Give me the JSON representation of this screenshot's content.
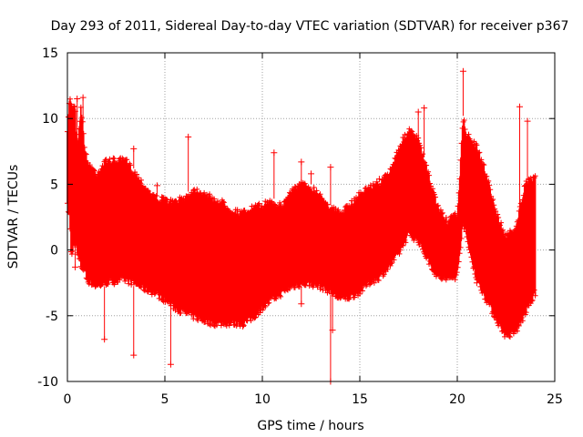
{
  "chart_data": {
    "type": "scatter",
    "title": "Day 293 of 2011, Sidereal Day-to-day VTEC variation (SDTVAR) for receiver p367",
    "xlabel": "GPS time / hours",
    "ylabel": "SDTVAR / TECUs",
    "xlim": [
      0,
      25
    ],
    "ylim": [
      -10,
      15
    ],
    "xticks": [
      0,
      5,
      10,
      15,
      20,
      25
    ],
    "yticks": [
      -10,
      -5,
      0,
      5,
      10,
      15
    ],
    "xtick_labels": [
      "0",
      "5",
      "10",
      "15",
      "20",
      "25"
    ],
    "ytick_labels": [
      "-10",
      "-5",
      "0",
      "5",
      "10",
      "15"
    ],
    "grid": true,
    "marker": "+",
    "color": "#ff0000",
    "series": [
      {
        "name": "SDTVAR",
        "x": [
          0.0,
          0.1,
          0.2,
          0.3,
          0.4,
          0.5,
          0.7,
          0.9,
          1.0,
          1.5,
          2.0,
          2.5,
          3.0,
          3.5,
          4.0,
          4.5,
          5.0,
          5.5,
          6.0,
          6.5,
          7.0,
          7.5,
          8.0,
          8.5,
          9.0,
          9.5,
          10.0,
          10.5,
          11.0,
          11.5,
          12.0,
          12.5,
          13.0,
          13.5,
          14.0,
          14.5,
          15.0,
          15.5,
          16.0,
          16.5,
          17.0,
          17.5,
          18.0,
          18.5,
          19.0,
          19.5,
          20.0,
          20.3,
          20.5,
          21.0,
          21.5,
          22.0,
          22.5,
          23.0,
          23.5,
          24.0
        ],
        "upper": [
          9.0,
          11.8,
          11.5,
          11.0,
          11.5,
          8.0,
          11.2,
          8.0,
          7.0,
          6.0,
          7.0,
          7.0,
          7.0,
          6.0,
          5.0,
          4.2,
          4.0,
          3.8,
          4.2,
          4.8,
          4.6,
          4.0,
          3.8,
          3.2,
          3.0,
          3.4,
          3.6,
          4.0,
          3.5,
          4.8,
          5.2,
          5.0,
          4.4,
          3.4,
          3.0,
          3.6,
          4.5,
          5.0,
          5.3,
          6.0,
          8.0,
          9.3,
          8.6,
          6.0,
          3.5,
          2.3,
          3.0,
          10.2,
          9.0,
          8.0,
          6.0,
          3.0,
          1.2,
          2.0,
          5.2,
          5.8
        ],
        "lower": [
          3.0,
          2.5,
          -1.0,
          0.0,
          0.5,
          -0.5,
          -1.5,
          -1.8,
          -2.5,
          -3.0,
          -2.7,
          -2.6,
          -2.5,
          -2.8,
          -3.2,
          -3.5,
          -4.0,
          -4.6,
          -5.0,
          -5.3,
          -5.6,
          -5.8,
          -5.8,
          -5.8,
          -5.8,
          -5.4,
          -4.6,
          -4.0,
          -3.5,
          -3.0,
          -2.8,
          -2.8,
          -3.0,
          -3.4,
          -4.0,
          -3.8,
          -3.4,
          -2.7,
          -2.3,
          -1.5,
          -0.5,
          1.0,
          0.5,
          -1.0,
          -2.3,
          -2.5,
          -2.2,
          2.0,
          0.5,
          -2.5,
          -4.0,
          -5.5,
          -6.8,
          -6.5,
          -5.0,
          -3.5
        ],
        "outliers": [
          [
            1.9,
            -6.8
          ],
          [
            3.4,
            7.7
          ],
          [
            3.4,
            -8.0
          ],
          [
            4.6,
            4.9
          ],
          [
            5.3,
            -8.7
          ],
          [
            6.2,
            8.6
          ],
          [
            10.6,
            7.4
          ],
          [
            12.0,
            6.7
          ],
          [
            12.0,
            -4.1
          ],
          [
            13.5,
            -10.0
          ],
          [
            13.5,
            6.3
          ],
          [
            13.6,
            -6.1
          ],
          [
            18.0,
            10.5
          ],
          [
            18.3,
            10.8
          ],
          [
            20.3,
            13.6
          ],
          [
            23.2,
            10.9
          ],
          [
            23.6,
            9.8
          ],
          [
            0.5,
            11.5
          ],
          [
            0.8,
            11.6
          ],
          [
            0.4,
            -1.3
          ],
          [
            21.0,
            -2.5
          ],
          [
            23.6,
            -4.0
          ],
          [
            12.5,
            5.8
          ],
          [
            16.0,
            5.4
          ],
          [
            9.0,
            -5.8
          ]
        ]
      }
    ]
  }
}
